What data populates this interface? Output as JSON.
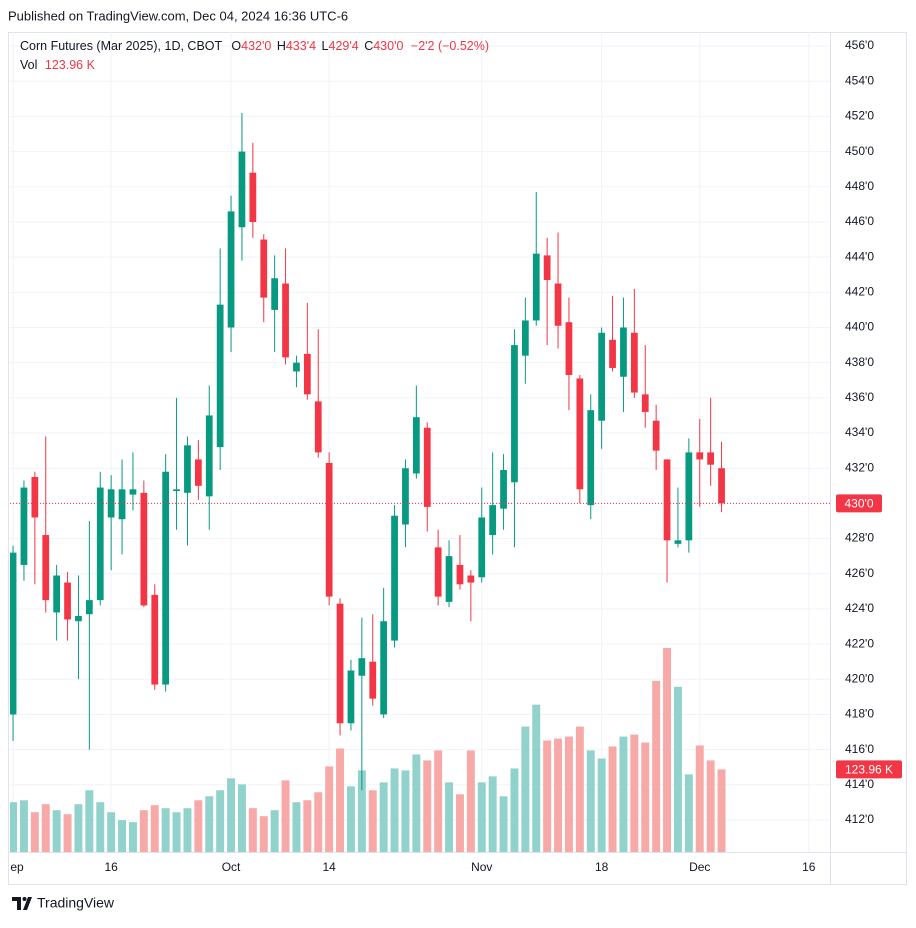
{
  "header": {
    "published": "Published on TradingView.com, Dec 04, 2024 16:36 UTC-6"
  },
  "footer": {
    "brand": "TradingView"
  },
  "chart_data": {
    "type": "candlestick",
    "legend": {
      "title": "Corn Futures (Mar 2025), 1D, CBOT",
      "items": [
        {
          "key": "O",
          "value": "432'0"
        },
        {
          "key": "H",
          "value": "433'4"
        },
        {
          "key": "L",
          "value": "429'4"
        },
        {
          "key": "C",
          "value": "430'0"
        }
      ],
      "change": "−2'2 (−0.52%)",
      "volume_key": "Vol",
      "volume_value": "123.96 K"
    },
    "last_price_label": "430'0",
    "last_volume_label": "123.96 K",
    "up_color": "#089981",
    "down_color": "#f23645",
    "volume_up_color": "#92d2cc",
    "volume_down_color": "#f7a9a7",
    "candles": {
      "open": [
        418.0,
        426.5,
        431.5,
        428.2,
        423.8,
        425.5,
        423.3,
        423.7,
        424.5,
        429.2,
        429.1,
        430.5,
        430.6,
        424.8,
        419.7,
        430.7,
        430.6,
        432.5,
        430.4,
        433.2,
        440.0,
        445.7,
        448.8,
        445.0,
        441.0,
        442.5,
        437.5,
        438.5,
        435.8,
        432.3,
        424.3,
        417.5,
        420.2,
        421.0,
        418.0,
        422.2,
        428.8,
        431.7,
        434.3,
        427.5,
        424.4,
        426.5,
        425.9,
        425.8,
        428.2,
        429.7,
        431.2,
        438.4,
        440.4,
        444.1,
        442.5,
        440.3,
        437.1,
        429.9,
        434.7,
        439.3,
        437.2,
        439.7,
        436.2,
        434.7,
        432.5,
        427.7,
        427.9,
        432.9,
        432.9,
        432.0
      ],
      "high": [
        427.6,
        431.3,
        431.8,
        433.8,
        426.5,
        426.1,
        425.9,
        429.0,
        431.8,
        431.6,
        432.5,
        432.9,
        431.3,
        425.4,
        432.8,
        436.0,
        433.8,
        433.6,
        436.7,
        444.5,
        447.5,
        452.2,
        450.5,
        445.3,
        444.1,
        444.5,
        438.4,
        441.4,
        439.9,
        432.9,
        424.6,
        421.1,
        423.5,
        423.7,
        425.2,
        429.9,
        432.5,
        436.7,
        434.6,
        428.5,
        427.9,
        428.2,
        426.2,
        430.9,
        432.9,
        432.8,
        439.9,
        441.7,
        447.7,
        445.1,
        445.4,
        441.7,
        437.3,
        436.2,
        440.0,
        441.8,
        441.7,
        442.2,
        439.0,
        435.6,
        432.5,
        430.9,
        433.7,
        434.8,
        436.0,
        433.5
      ],
      "low": [
        416.5,
        425.6,
        425.4,
        423.8,
        422.2,
        422.2,
        420.0,
        416.0,
        424.2,
        426.2,
        427.1,
        429.6,
        424.1,
        419.4,
        419.3,
        428.5,
        427.6,
        430.2,
        428.5,
        431.9,
        438.6,
        443.8,
        445.1,
        440.3,
        438.6,
        437.9,
        436.6,
        435.9,
        432.6,
        424.2,
        416.8,
        417.1,
        413.7,
        418.5,
        417.8,
        421.8,
        427.5,
        431.4,
        428.4,
        424.2,
        424.1,
        425.1,
        423.3,
        425.5,
        427.1,
        428.5,
        427.5,
        436.8,
        440.1,
        439.0,
        438.8,
        435.3,
        430.0,
        429.1,
        433.1,
        437.5,
        435.2,
        436.0,
        434.3,
        431.9,
        425.5,
        427.5,
        427.2,
        429.8,
        431.0,
        429.5
      ],
      "close": [
        427.2,
        430.9,
        429.2,
        424.5,
        425.9,
        423.4,
        423.6,
        424.5,
        430.9,
        430.8,
        430.8,
        430.8,
        424.2,
        419.7,
        431.8,
        430.8,
        433.3,
        431.0,
        435.0,
        441.3,
        446.6,
        450.0,
        446.0,
        441.7,
        442.8,
        438.3,
        438.0,
        436.2,
        432.9,
        424.7,
        417.5,
        420.5,
        421.2,
        418.9,
        423.3,
        429.3,
        432.0,
        434.9,
        429.8,
        424.7,
        427.0,
        425.4,
        425.5,
        429.2,
        429.9,
        431.9,
        439.0,
        440.4,
        444.2,
        442.7,
        440.1,
        437.3,
        430.8,
        435.3,
        439.7,
        437.7,
        440.0,
        436.3,
        435.2,
        433.0,
        427.9,
        427.9,
        432.9,
        432.5,
        432.2,
        430.0
      ]
    },
    "volume": [
      74700,
      77600,
      59700,
      71700,
      62700,
      56700,
      71700,
      92600,
      74700,
      59700,
      47800,
      44800,
      62700,
      70200,
      65700,
      59700,
      65700,
      77600,
      83600,
      92600,
      110500,
      101500,
      65700,
      53700,
      62700,
      107500,
      74700,
      77600,
      89600,
      128400,
      155300,
      98500,
      122400,
      92600,
      104500,
      125400,
      122400,
      146300,
      137400,
      152300,
      104500,
      86600,
      152300,
      104500,
      113500,
      83600,
      125400,
      188100,
      221000,
      167200,
      170200,
      173200,
      188100,
      152300,
      140300,
      158300,
      173200,
      176200,
      164200,
      256800,
      306100,
      247800,
      116500,
      159800,
      137400,
      123960
    ],
    "xlim": [
      -0.28,
      74.95
    ],
    "ylim": [
      410.18,
      456.8
    ],
    "vlim": [
      0,
      600000
    ],
    "xticks": [
      {
        "value": 0,
        "label": "Sep"
      },
      {
        "value": 9,
        "label": "16"
      },
      {
        "value": 20,
        "label": "Oct"
      },
      {
        "value": 29,
        "label": "14"
      },
      {
        "value": 43,
        "label": "Nov"
      },
      {
        "value": 54,
        "label": "18"
      },
      {
        "value": 63,
        "label": "Dec"
      },
      {
        "value": 73,
        "label": "16"
      }
    ],
    "yticks": [
      {
        "value": 412,
        "label": "412'0"
      },
      {
        "value": 414,
        "label": "414'0"
      },
      {
        "value": 416,
        "label": "416'0"
      },
      {
        "value": 418,
        "label": "418'0"
      },
      {
        "value": 420,
        "label": "420'0"
      },
      {
        "value": 422,
        "label": "422'0"
      },
      {
        "value": 424,
        "label": "424'0"
      },
      {
        "value": 426,
        "label": "426'0"
      },
      {
        "value": 428,
        "label": "428'0"
      },
      {
        "value": 430,
        "label": "430'0"
      },
      {
        "value": 432,
        "label": "432'0"
      },
      {
        "value": 434,
        "label": "434'0"
      },
      {
        "value": 436,
        "label": "436'0"
      },
      {
        "value": 438,
        "label": "438'0"
      },
      {
        "value": 440,
        "label": "440'0"
      },
      {
        "value": 442,
        "label": "442'0"
      },
      {
        "value": 444,
        "label": "444'0"
      },
      {
        "value": 446,
        "label": "446'0"
      },
      {
        "value": 448,
        "label": "448'0"
      },
      {
        "value": 450,
        "label": "450'0"
      },
      {
        "value": 452,
        "label": "452'0"
      },
      {
        "value": 454,
        "label": "454'0"
      },
      {
        "value": 456,
        "label": "456'0"
      }
    ],
    "grid": true
  }
}
